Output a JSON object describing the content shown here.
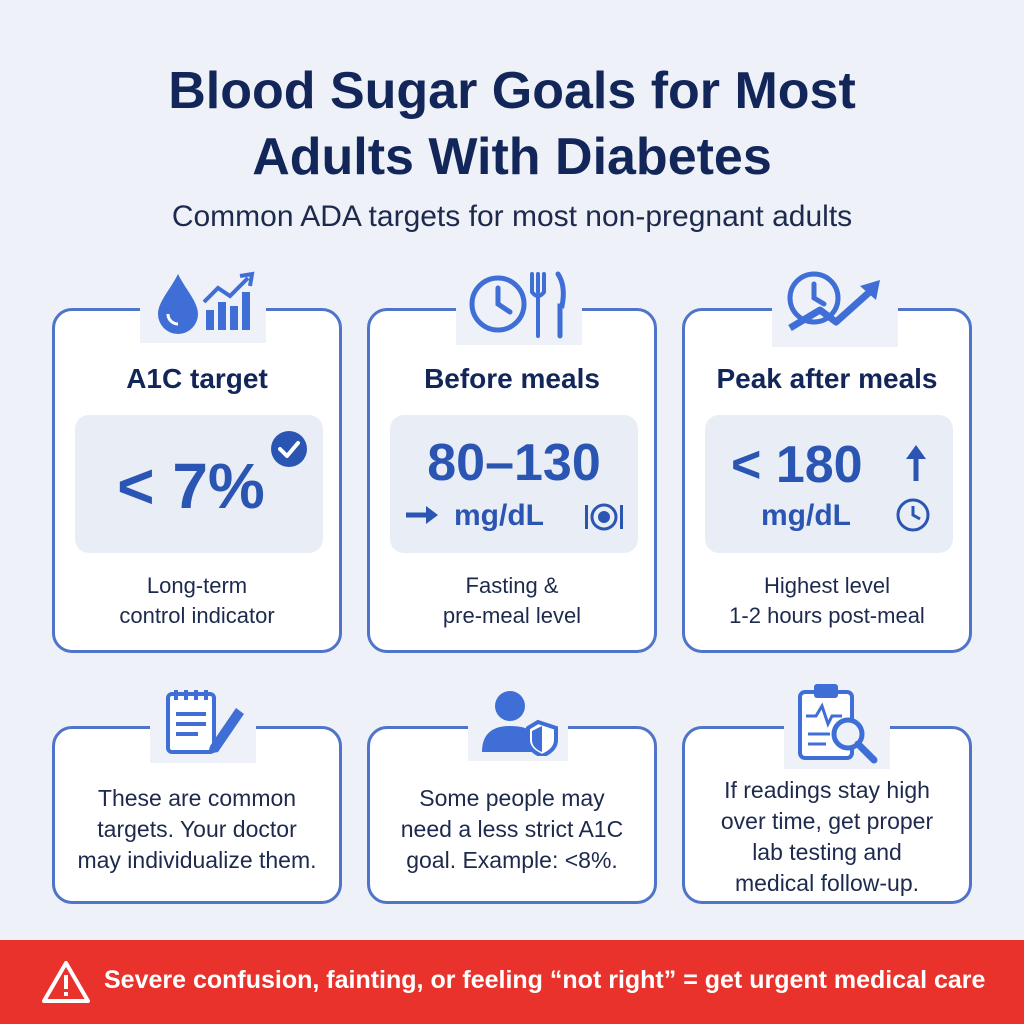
{
  "title_line1": "Blood Sugar Goals for Most",
  "title_line2": "Adults With Diabetes",
  "subtitle": "Common ADA targets for most non-pregnant adults",
  "targets": [
    {
      "title": "A1C target",
      "value": "< 7%",
      "unit": "",
      "desc_line1": "Long-term",
      "desc_line2": "control indicator",
      "icon": "blood-drop-chart-icon"
    },
    {
      "title": "Before meals",
      "value": "80–130",
      "unit": "mg/dL",
      "desc_line1": "Fasting &",
      "desc_line2": "pre-meal level",
      "icon": "clock-fork-knife-icon"
    },
    {
      "title": "Peak after meals",
      "value": "< 180",
      "unit": "mg/dL",
      "desc_line1": "Highest level",
      "desc_line2": "1-2 hours post-meal",
      "icon": "clock-trend-icon"
    }
  ],
  "notes": [
    {
      "line1": "These are common",
      "line2": "targets. Your doctor",
      "line3": "may individualize them.",
      "icon": "notepad-pencil-icon"
    },
    {
      "line1": "Some people may",
      "line2": "need a less strict A1C",
      "line3": "goal. Example: <8%.",
      "icon": "person-shield-icon"
    },
    {
      "line1": "If readings stay high",
      "line2": "over time, get proper",
      "line3": "lab testing and",
      "line4": "medical follow-up.",
      "icon": "clipboard-magnifier-icon"
    }
  ],
  "alert": "Severe confusion, fainting, or feeling “not right” = get urgent medical care",
  "colors": {
    "accent": "#2a55b2",
    "border": "#4f74c9",
    "alert": "#e8322b",
    "title": "#13265a"
  }
}
